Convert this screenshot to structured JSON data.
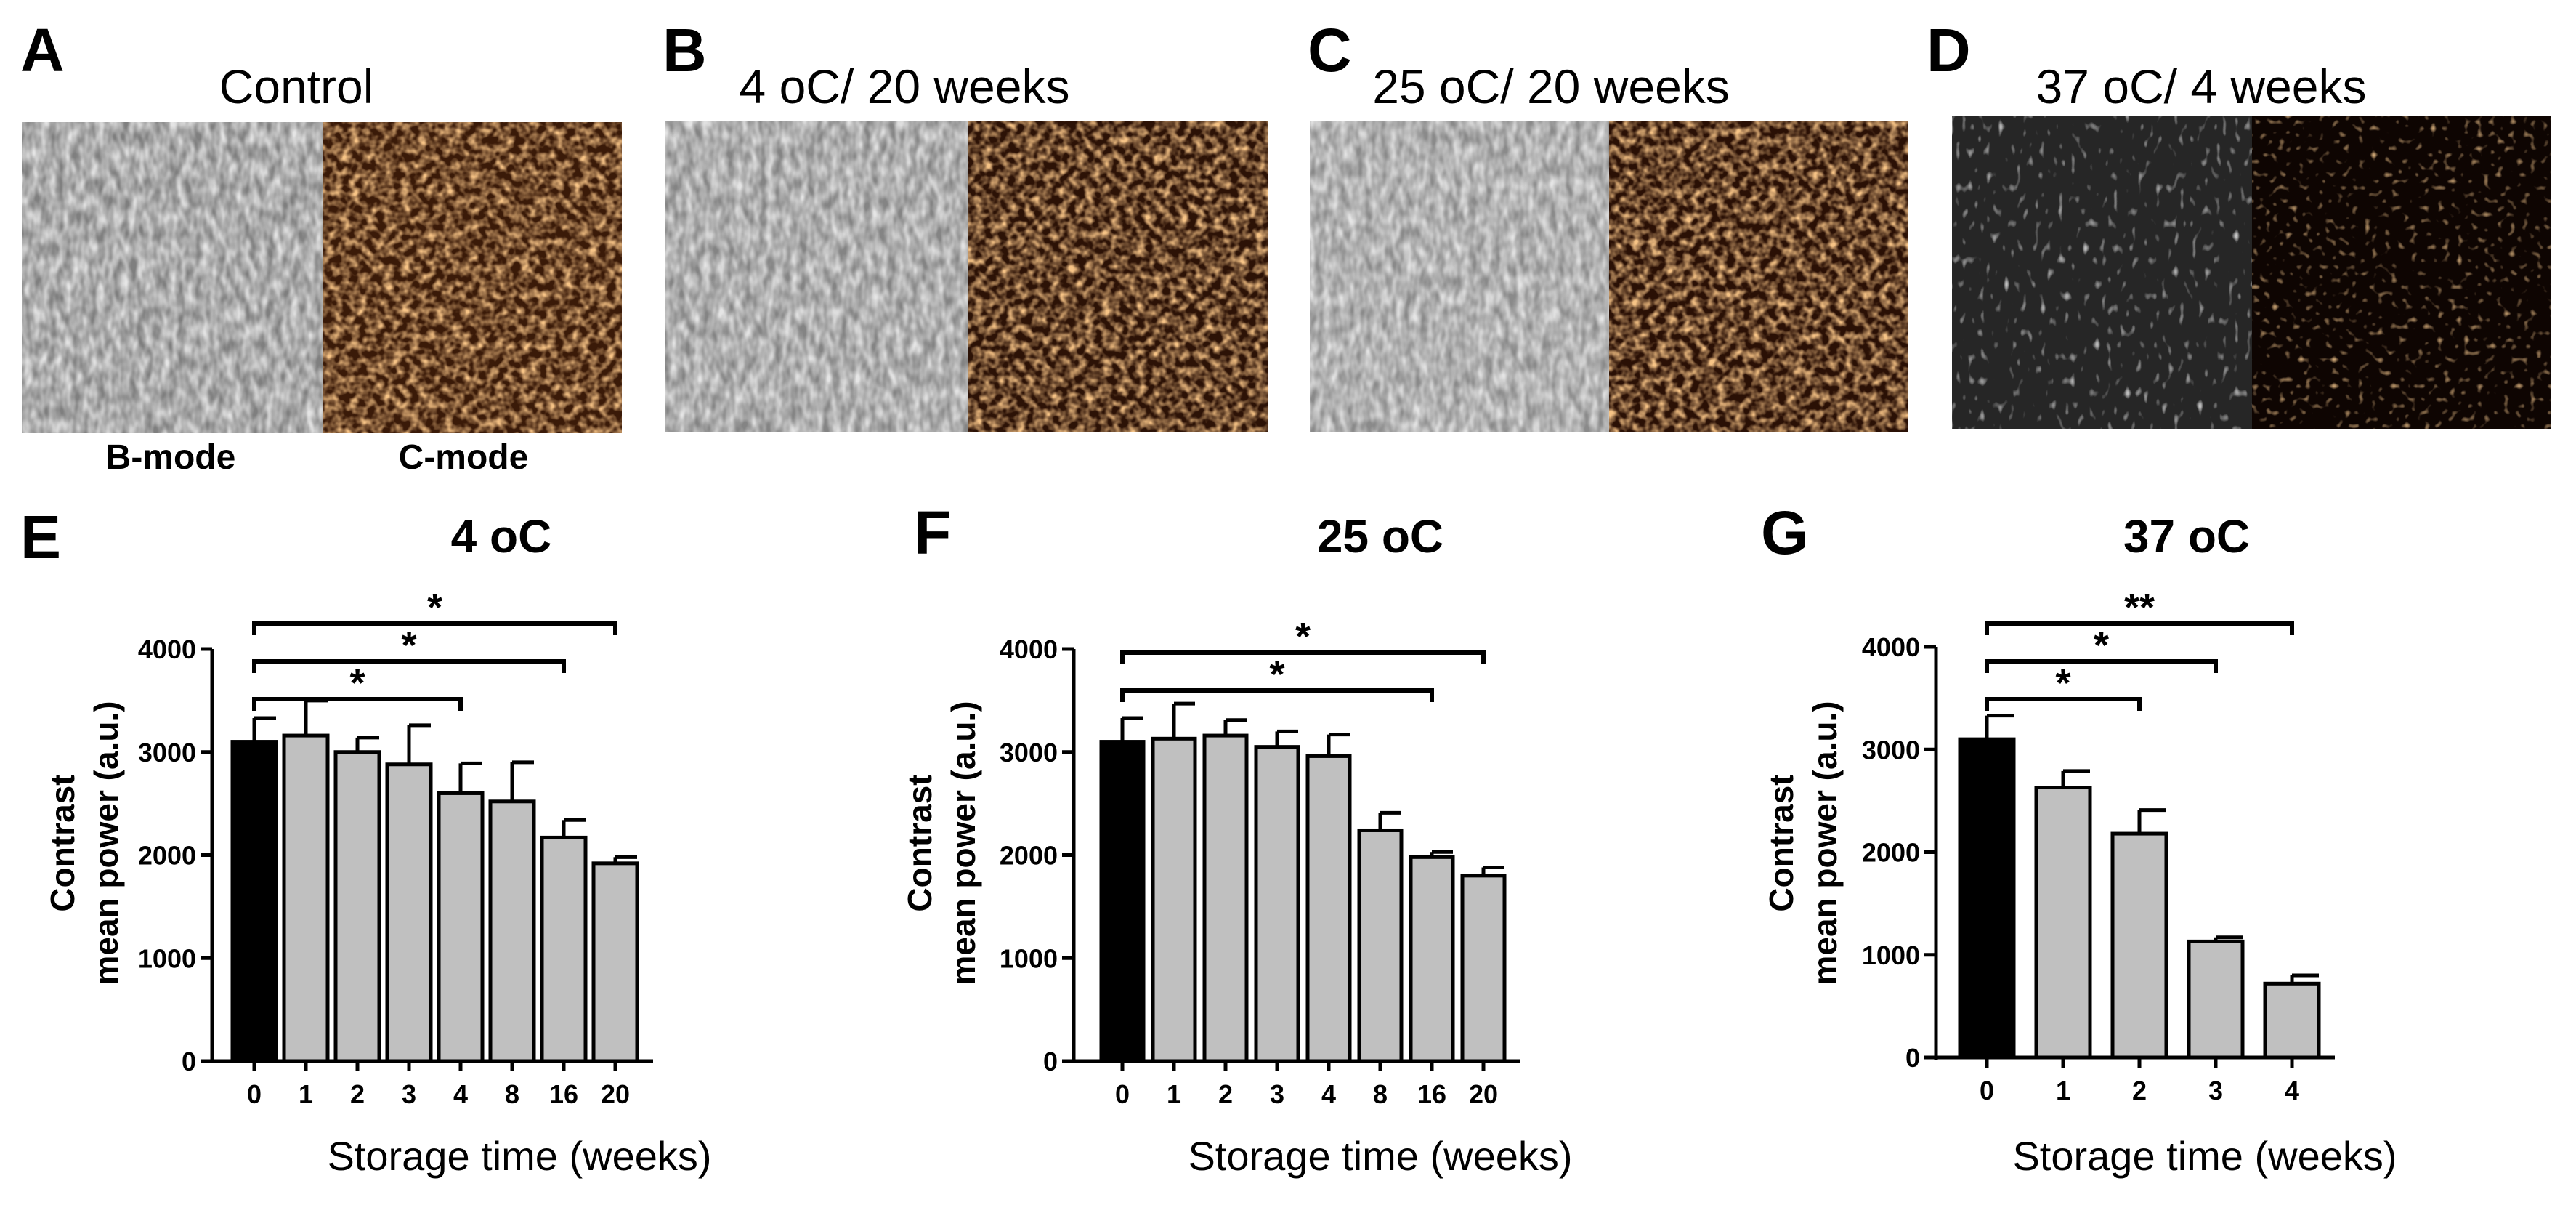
{
  "panels": [
    {
      "label": "A",
      "title": "Control"
    },
    {
      "label": "B",
      "title": "4 oC/ 20 weeks"
    },
    {
      "label": "C",
      "title": "25 oC/ 20 weeks"
    },
    {
      "label": "D",
      "title": "37 oC/ 4 weeks"
    }
  ],
  "mode_labels": {
    "bmode": "B-mode",
    "cmode": "C-mode"
  },
  "colors": {
    "control_bar": "#000000",
    "storage_bar": "#c0c0c0",
    "cmode_bright": "#e0883a",
    "cmode_dark": "#2a1206"
  },
  "chart_data": [
    {
      "type": "bar",
      "label": "E",
      "title": "4 oC",
      "categories": [
        "0",
        "1",
        "2",
        "3",
        "4",
        "8",
        "16",
        "20"
      ],
      "values": [
        3100,
        3160,
        3000,
        2880,
        2600,
        2520,
        2170,
        1920
      ],
      "errors": [
        230,
        340,
        140,
        380,
        290,
        380,
        170,
        60
      ],
      "xlabel": "Storage time (weeks)",
      "ylabel_line1": "Contrast",
      "ylabel_line2": "mean power (a.u.)",
      "ylim": [
        0,
        4000
      ],
      "yticks": [
        0,
        1000,
        2000,
        3000,
        4000
      ],
      "significance": [
        {
          "from": 0,
          "to": 4,
          "label": "*"
        },
        {
          "from": 0,
          "to": 6,
          "label": "*"
        },
        {
          "from": 0,
          "to": 7,
          "label": "*"
        }
      ]
    },
    {
      "type": "bar",
      "label": "F",
      "title": "25 oC",
      "categories": [
        "0",
        "1",
        "2",
        "3",
        "4",
        "8",
        "16",
        "20"
      ],
      "values": [
        3100,
        3130,
        3160,
        3050,
        2960,
        2240,
        1980,
        1800
      ],
      "errors": [
        230,
        340,
        150,
        150,
        210,
        170,
        50,
        80
      ],
      "xlabel": "Storage time (weeks)",
      "ylabel_line1": "Contrast",
      "ylabel_line2": "mean power (a.u.)",
      "ylim": [
        0,
        4000
      ],
      "yticks": [
        0,
        1000,
        2000,
        3000,
        4000
      ],
      "significance": [
        {
          "from": 0,
          "to": 6,
          "label": "*"
        },
        {
          "from": 0,
          "to": 7,
          "label": "*"
        }
      ]
    },
    {
      "type": "bar",
      "label": "G",
      "title": "37 oC",
      "categories": [
        "0",
        "1",
        "2",
        "3",
        "4"
      ],
      "values": [
        3100,
        2630,
        2180,
        1130,
        720
      ],
      "errors": [
        230,
        160,
        230,
        40,
        80
      ],
      "xlabel": "Storage time (weeks)",
      "ylabel_line1": "Contrast",
      "ylabel_line2": "mean power (a.u.)",
      "ylim": [
        0,
        4000
      ],
      "yticks": [
        0,
        1000,
        2000,
        3000,
        4000
      ],
      "significance": [
        {
          "from": 0,
          "to": 2,
          "label": "*"
        },
        {
          "from": 0,
          "to": 3,
          "label": "*"
        },
        {
          "from": 0,
          "to": 4,
          "label": "**"
        }
      ]
    }
  ]
}
